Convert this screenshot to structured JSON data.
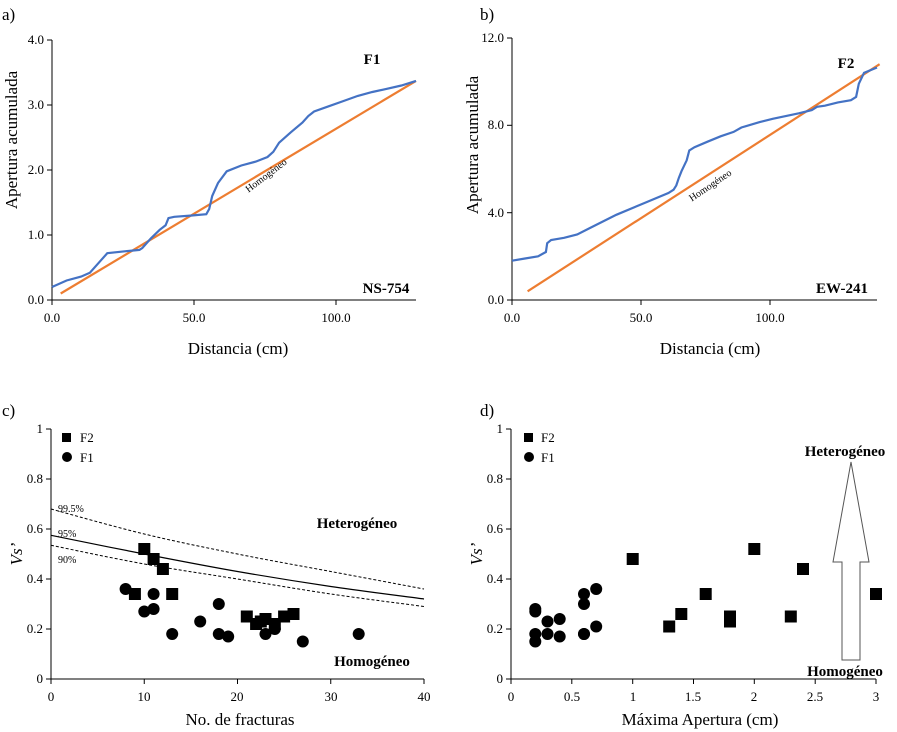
{
  "panels": [
    {
      "id": "a",
      "panel_label": "a)",
      "xlabel": "Distancia (cm)",
      "ylabel": "Apertura acumulada",
      "xticks": [
        "0.0",
        "50.0",
        "100.0"
      ],
      "yticks": [
        "0.0",
        "1.0",
        "2.0",
        "3.0",
        "4.0"
      ],
      "series_label": "F1",
      "line_label": "Homogéneo",
      "site_label": "NS-754"
    },
    {
      "id": "b",
      "panel_label": "b)",
      "xlabel": "Distancia (cm)",
      "ylabel": "Apertura acumulada",
      "xticks": [
        "0.0",
        "50.0",
        "100.0"
      ],
      "yticks": [
        "0.0",
        "4.0",
        "8.0",
        "12.0"
      ],
      "series_label": "F2",
      "line_label": "Homogéneo",
      "site_label": "EW-241"
    },
    {
      "id": "c",
      "panel_label": "c)",
      "xlabel": "No. de fracturas",
      "ylabel": "Vs’",
      "xticks": [
        "0",
        "10",
        "20",
        "30",
        "40"
      ],
      "yticks": [
        "0",
        "0.2",
        "0.4",
        "0.6",
        "0.8",
        "1"
      ],
      "legend": [
        "F2",
        "F1"
      ],
      "region_top": "Heterogéneo",
      "region_bottom": "Homogéneo",
      "curve_labels": [
        "99.5%",
        "95%",
        "90%"
      ]
    },
    {
      "id": "d",
      "panel_label": "d)",
      "xlabel": "Máxima Apertura (cm)",
      "ylabel": "Vs’",
      "xticks": [
        "0",
        "0.5",
        "1",
        "1.5",
        "2",
        "2.5",
        "3"
      ],
      "yticks": [
        "0",
        "0.2",
        "0.4",
        "0.6",
        "0.8",
        "1"
      ],
      "legend": [
        "F2",
        "F1"
      ],
      "region_top": "Heterogéneo",
      "region_bottom": "Homogéneo"
    }
  ],
  "colors": {
    "cumulative": "#4472C4",
    "homogeneous": "#ED7D31",
    "marker": "#000000"
  },
  "chart_data": [
    {
      "type": "line",
      "panel": "a",
      "xlim": [
        0,
        125
      ],
      "ylim": [
        0,
        4
      ],
      "series": [
        {
          "name": "F1",
          "x": [
            0,
            5,
            10,
            13,
            17,
            19,
            25,
            30,
            31,
            34,
            37,
            39,
            40,
            42,
            48,
            53,
            54,
            55,
            57,
            60,
            65,
            70,
            74,
            76,
            78,
            82,
            86,
            88,
            90,
            95,
            100,
            105,
            110,
            115,
            120,
            125
          ],
          "y": [
            0.2,
            0.3,
            0.36,
            0.42,
            0.62,
            0.72,
            0.75,
            0.77,
            0.8,
            0.95,
            1.08,
            1.15,
            1.26,
            1.28,
            1.3,
            1.32,
            1.4,
            1.6,
            1.8,
            1.98,
            2.07,
            2.13,
            2.2,
            2.28,
            2.42,
            2.58,
            2.73,
            2.83,
            2.9,
            2.98,
            3.06,
            3.14,
            3.2,
            3.25,
            3.3,
            3.37
          ]
        },
        {
          "name": "Homogéneo",
          "x": [
            3,
            125
          ],
          "y": [
            0.1,
            3.37
          ]
        }
      ]
    },
    {
      "type": "line",
      "panel": "b",
      "xlim": [
        0,
        140
      ],
      "ylim": [
        0,
        12
      ],
      "series": [
        {
          "name": "F2",
          "x": [
            0,
            5,
            10,
            13,
            13.5,
            15,
            20,
            25,
            30,
            40,
            50,
            60,
            62,
            63,
            64,
            65,
            67,
            68,
            70,
            75,
            80,
            85,
            88,
            95,
            100,
            110,
            115,
            117,
            120,
            125,
            130,
            132,
            133,
            135,
            140
          ],
          "y": [
            1.8,
            1.9,
            2.0,
            2.2,
            2.6,
            2.75,
            2.85,
            3.0,
            3.3,
            3.9,
            4.4,
            4.9,
            5.05,
            5.25,
            5.6,
            5.9,
            6.4,
            6.85,
            7.0,
            7.25,
            7.5,
            7.7,
            7.9,
            8.15,
            8.3,
            8.55,
            8.7,
            8.85,
            8.9,
            9.05,
            9.15,
            9.3,
            9.9,
            10.4,
            10.65
          ]
        },
        {
          "name": "Homogéneo",
          "x": [
            6,
            141
          ],
          "y": [
            0.4,
            10.8
          ]
        }
      ]
    },
    {
      "type": "scatter",
      "panel": "c",
      "xlim": [
        0,
        40
      ],
      "ylim": [
        0,
        1
      ],
      "series": [
        {
          "name": "F2",
          "x": [
            9,
            10,
            11,
            12,
            13,
            21,
            22,
            22.5,
            23,
            24,
            25,
            26
          ],
          "y": [
            0.34,
            0.52,
            0.48,
            0.44,
            0.34,
            0.25,
            0.22,
            0.23,
            0.24,
            0.22,
            0.25,
            0.26
          ]
        },
        {
          "name": "F1",
          "x": [
            8,
            10,
            11,
            11,
            13,
            16,
            18,
            18,
            19,
            23,
            24,
            27,
            33
          ],
          "y": [
            0.36,
            0.27,
            0.28,
            0.34,
            0.18,
            0.23,
            0.3,
            0.18,
            0.17,
            0.18,
            0.2,
            0.15,
            0.18
          ]
        },
        {
          "name": "99.5%",
          "x": [
            0,
            10,
            20,
            30,
            40
          ],
          "y": [
            0.68,
            0.58,
            0.5,
            0.43,
            0.36
          ]
        },
        {
          "name": "95%",
          "x": [
            0,
            10,
            20,
            30,
            40
          ],
          "y": [
            0.575,
            0.5,
            0.43,
            0.37,
            0.32
          ]
        },
        {
          "name": "90%",
          "x": [
            0,
            10,
            20,
            30,
            40
          ],
          "y": [
            0.535,
            0.46,
            0.4,
            0.34,
            0.29
          ]
        }
      ]
    },
    {
      "type": "scatter",
      "panel": "d",
      "xlim": [
        0,
        3
      ],
      "ylim": [
        0,
        1
      ],
      "series": [
        {
          "name": "F2",
          "x": [
            1.0,
            1.3,
            1.4,
            1.6,
            1.8,
            1.8,
            2.0,
            2.3,
            2.4,
            3.0
          ],
          "y": [
            0.48,
            0.21,
            0.26,
            0.34,
            0.25,
            0.23,
            0.52,
            0.25,
            0.44,
            0.34
          ]
        },
        {
          "name": "F1",
          "x": [
            0.2,
            0.2,
            0.2,
            0.2,
            0.3,
            0.3,
            0.4,
            0.4,
            0.6,
            0.6,
            0.6,
            0.6,
            0.7,
            0.7
          ],
          "y": [
            0.15,
            0.18,
            0.27,
            0.28,
            0.18,
            0.23,
            0.17,
            0.24,
            0.18,
            0.3,
            0.34,
            0.18,
            0.21,
            0.36
          ]
        }
      ]
    }
  ]
}
